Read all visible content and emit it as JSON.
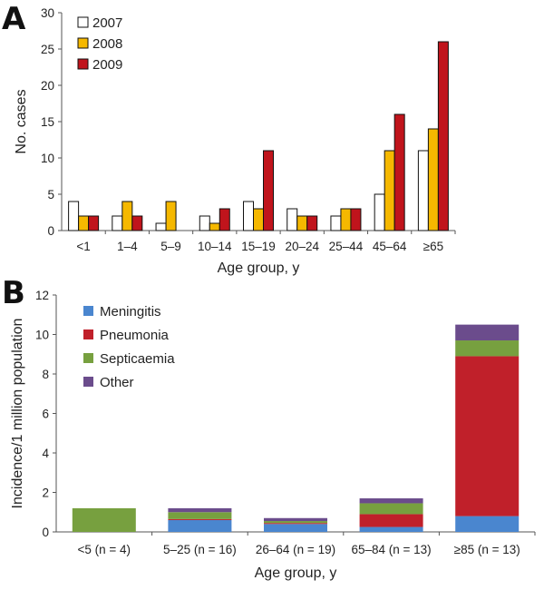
{
  "panel_labels": [
    "A",
    "B"
  ],
  "chart_data": [
    {
      "type": "bar",
      "panel": "A",
      "title": "",
      "xlabel": "Age group, y",
      "ylabel": "No. cases",
      "ylim": [
        0,
        30
      ],
      "yticks": [
        0,
        5,
        10,
        15,
        20,
        25,
        30
      ],
      "grid": false,
      "legend_position": "top-left",
      "categories": [
        "<1",
        "1–4",
        "5–9",
        "10–14",
        "15–19",
        "20–24",
        "25–44",
        "45–64",
        "≥65"
      ],
      "series": [
        {
          "name": "2007",
          "color": "#ffffff",
          "values": [
            4,
            2,
            1,
            2,
            4,
            3,
            2,
            5,
            11
          ]
        },
        {
          "name": "2008",
          "color": "#f5b800",
          "values": [
            2,
            4,
            4,
            1,
            3,
            2,
            3,
            11,
            14
          ]
        },
        {
          "name": "2009",
          "color": "#c0141c",
          "values": [
            2,
            2,
            0,
            3,
            11,
            2,
            3,
            16,
            26
          ]
        }
      ]
    },
    {
      "type": "bar",
      "stacked": true,
      "panel": "B",
      "title": "",
      "xlabel": "Age group, y",
      "ylabel": "Incidence/1  million population",
      "ylim": [
        0,
        12
      ],
      "yticks": [
        0,
        2,
        4,
        6,
        8,
        10,
        12
      ],
      "grid": false,
      "legend_position": "top-left",
      "categories": [
        "<5 (n = 4)",
        "5–25 (n = 16)",
        "26–64 (n = 19)",
        "65–84 (n = 13)",
        "≥85 (n = 13)"
      ],
      "series": [
        {
          "name": "Meningitis",
          "color": "#4a86cf",
          "values": [
            0,
            0.6,
            0.4,
            0.25,
            0.8
          ]
        },
        {
          "name": "Pneumonia",
          "color": "#c0202a",
          "values": [
            0,
            0.05,
            0.05,
            0.65,
            8.1
          ]
        },
        {
          "name": "Septicaemia",
          "color": "#77a03f",
          "values": [
            1.2,
            0.35,
            0.1,
            0.55,
            0.8
          ]
        },
        {
          "name": "Other",
          "color": "#6b4c8c",
          "values": [
            0,
            0.2,
            0.15,
            0.25,
            0.8
          ]
        }
      ]
    }
  ]
}
